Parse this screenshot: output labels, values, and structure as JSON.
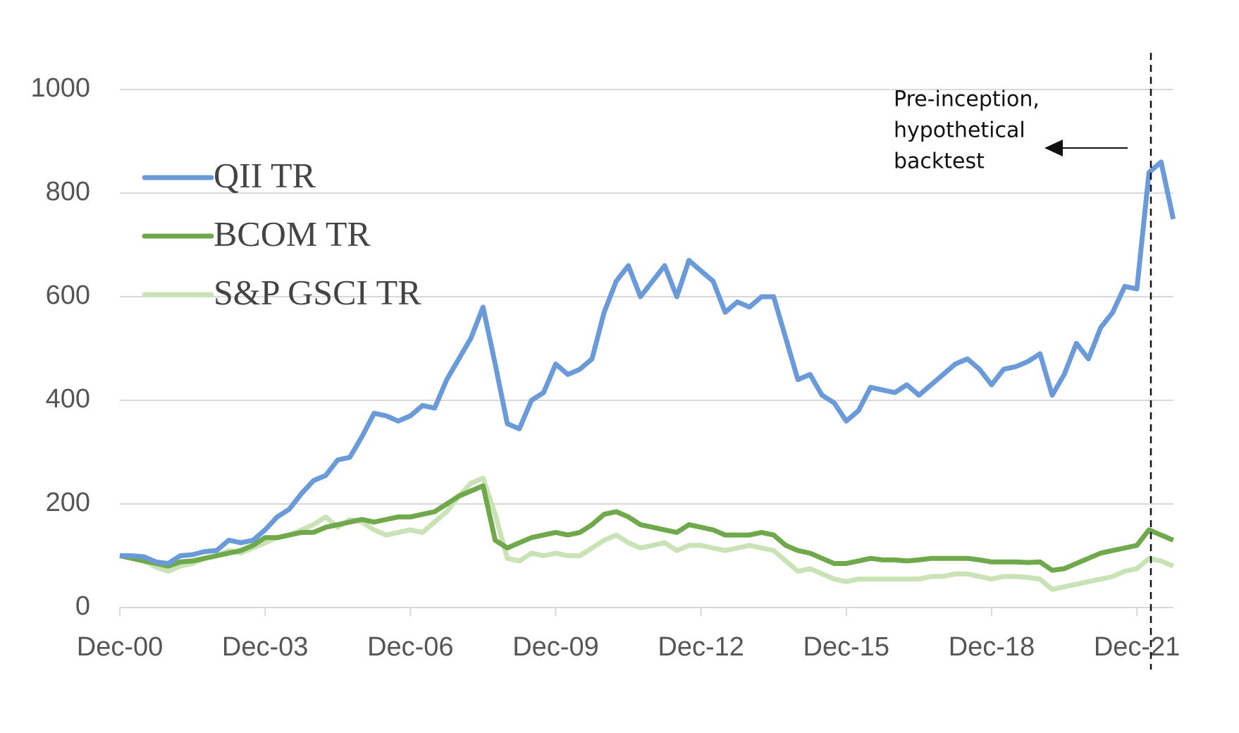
{
  "chart_data": {
    "type": "line",
    "annotation": [
      "Pre-inception,",
      "hypothetical",
      "backtest"
    ],
    "categories": [
      "Dec-00",
      null,
      null,
      null,
      null,
      null,
      null,
      null,
      null,
      null,
      null,
      null,
      "Dec-03",
      null,
      null,
      null,
      null,
      null,
      null,
      null,
      null,
      null,
      null,
      null,
      "Dec-06",
      null,
      null,
      null,
      null,
      null,
      null,
      null,
      null,
      null,
      null,
      null,
      "Dec-09",
      null,
      null,
      null,
      null,
      null,
      null,
      null,
      null,
      null,
      null,
      null,
      "Dec-12",
      null,
      null,
      null,
      null,
      null,
      null,
      null,
      null,
      null,
      null,
      null,
      "Dec-15",
      null,
      null,
      null,
      null,
      null,
      null,
      null,
      null,
      null,
      null,
      null,
      "Dec-18",
      null,
      null,
      null,
      null,
      null,
      null,
      null,
      null,
      null,
      null,
      null,
      "Dec-21",
      null,
      null,
      null
    ],
    "series": [
      {
        "name": "QII TR",
        "color": "#6a9bd8",
        "values": [
          100,
          100,
          98,
          88,
          85,
          100,
          102,
          108,
          110,
          130,
          125,
          130,
          150,
          175,
          190,
          220,
          245,
          255,
          285,
          290,
          330,
          375,
          370,
          360,
          370,
          390,
          385,
          440,
          480,
          520,
          580,
          470,
          355,
          345,
          400,
          415,
          470,
          450,
          460,
          480,
          570,
          630,
          660,
          600,
          630,
          660,
          600,
          670,
          650,
          630,
          570,
          590,
          580,
          600,
          600,
          520,
          440,
          450,
          410,
          395,
          360,
          380,
          425,
          420,
          415,
          430,
          410,
          430,
          450,
          470,
          480,
          460,
          430,
          460,
          465,
          475,
          490,
          410,
          450,
          510,
          480,
          540,
          570,
          620,
          615,
          840,
          860,
          750
        ]
      },
      {
        "name": "BCOM TR",
        "color": "#70a84c",
        "values": [
          100,
          95,
          90,
          85,
          80,
          88,
          90,
          95,
          100,
          105,
          110,
          120,
          135,
          135,
          140,
          145,
          145,
          155,
          160,
          165,
          170,
          165,
          170,
          175,
          175,
          180,
          185,
          200,
          215,
          225,
          235,
          130,
          115,
          125,
          135,
          140,
          145,
          140,
          145,
          160,
          180,
          185,
          175,
          160,
          155,
          150,
          145,
          160,
          155,
          150,
          140,
          140,
          140,
          145,
          140,
          120,
          110,
          105,
          95,
          85,
          85,
          90,
          95,
          92,
          92,
          90,
          92,
          95,
          95,
          95,
          95,
          92,
          88,
          88,
          88,
          87,
          88,
          72,
          75,
          85,
          95,
          105,
          110,
          115,
          120,
          150,
          140,
          130
        ]
      },
      {
        "name": "S&P GSCI TR",
        "color": "#c9e2b6",
        "values": [
          100,
          95,
          90,
          78,
          70,
          80,
          85,
          95,
          100,
          110,
          105,
          115,
          125,
          135,
          140,
          150,
          160,
          175,
          155,
          170,
          165,
          150,
          140,
          145,
          150,
          145,
          165,
          185,
          215,
          240,
          250,
          180,
          95,
          90,
          105,
          100,
          105,
          100,
          100,
          115,
          130,
          140,
          125,
          115,
          120,
          125,
          110,
          120,
          120,
          115,
          110,
          115,
          120,
          115,
          110,
          90,
          70,
          75,
          65,
          55,
          50,
          55,
          55,
          55,
          55,
          55,
          55,
          60,
          60,
          65,
          65,
          60,
          55,
          60,
          60,
          58,
          55,
          35,
          40,
          45,
          50,
          55,
          60,
          70,
          75,
          95,
          90,
          80
        ]
      }
    ],
    "ylim": [
      0,
      1000
    ],
    "yticks": [
      0,
      200,
      400,
      600,
      800,
      1000
    ],
    "grid": true,
    "legend": "upper left"
  }
}
